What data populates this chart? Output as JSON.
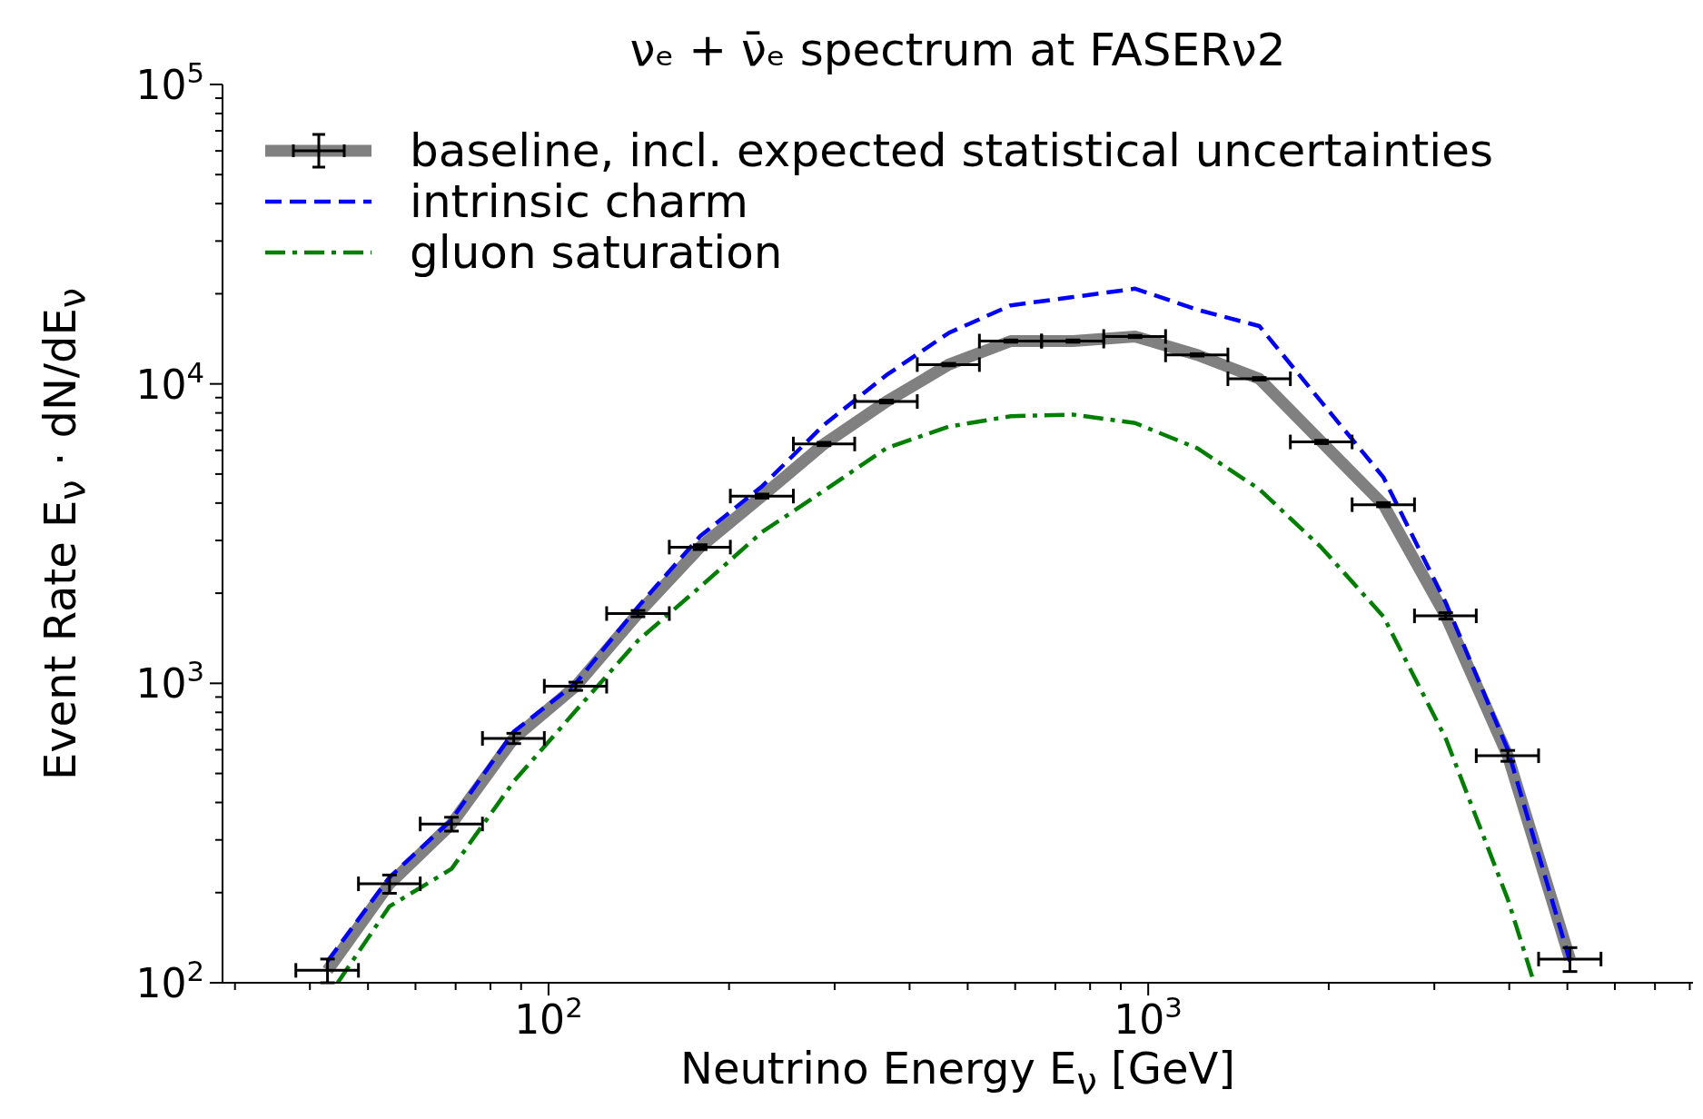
{
  "chart_data": {
    "type": "line",
    "title": "νₑ + ν̄ₑ spectrum at FASERν2",
    "xlabel": "Neutrino Energy  E$_{ν}$ [GeV]",
    "ylabel": "Event Rate   E$_{ν}$ · dN/dE$_{ν}$",
    "x": [
      42.8,
      54.3,
      68.9,
      87.5,
      111,
      141,
      179,
      227,
      288,
      366,
      465,
      590,
      749,
      951,
      1207,
      1532,
      1945,
      2468,
      3134,
      3978,
      5050
    ],
    "series": [
      {
        "name": "baseline, incl. expected statistical uncertainties",
        "color": "#808080",
        "line_style": "solid",
        "values": [
          110,
          214,
          339,
          655,
          978,
          1710,
          2850,
          4220,
          6300,
          8730,
          11600,
          13900,
          13900,
          14400,
          12500,
          10400,
          6400,
          3950,
          1680,
          573,
          120
        ],
        "errors": [
          10,
          15,
          18,
          26,
          31,
          41,
          53,
          65,
          79,
          93,
          108,
          118,
          118,
          120,
          112,
          102,
          80,
          63,
          41,
          24,
          11
        ],
        "xerrors": [
          [
            37.9,
            48.2
          ],
          [
            48.2,
            61.1
          ],
          [
            61.1,
            77.6
          ],
          [
            77.6,
            98.4
          ],
          [
            98.4,
            125
          ],
          [
            125,
            159
          ],
          [
            159,
            201
          ],
          [
            201,
            256
          ],
          [
            256,
            324
          ],
          [
            324,
            412
          ],
          [
            412,
            523
          ],
          [
            523,
            664
          ],
          [
            664,
            843
          ],
          [
            843,
            1069
          ],
          [
            1069,
            1358
          ],
          [
            1358,
            1726
          ],
          [
            1726,
            2188
          ],
          [
            2188,
            2780
          ],
          [
            2780,
            3524
          ],
          [
            3524,
            4477
          ],
          [
            4477,
            5689
          ]
        ]
      },
      {
        "name": "intrinsic charm",
        "color": "#0000ff",
        "line_style": "dashed",
        "values": [
          118,
          225,
          350,
          690,
          1000,
          1800,
          3100,
          4550,
          7300,
          10700,
          14800,
          18300,
          19500,
          20800,
          17700,
          15600,
          8700,
          4870,
          1860,
          600,
          118
        ]
      },
      {
        "name": "gluon saturation",
        "color": "#008000",
        "line_style": "dashdot",
        "x": [
          44.5,
          54.3,
          68.9,
          87.5,
          111,
          141,
          179,
          227,
          288,
          366,
          465,
          590,
          749,
          951,
          1207,
          1532,
          1945,
          2468,
          3134,
          3978,
          4400
        ],
        "values": [
          100,
          180,
          240,
          470,
          810,
          1390,
          2100,
          3200,
          4400,
          6100,
          7200,
          7800,
          7900,
          7400,
          6100,
          4450,
          2840,
          1670,
          655,
          190,
          100
        ]
      }
    ],
    "log": "xy",
    "xlim": [
      28.6,
      8100
    ],
    "ylim": [
      100,
      100000
    ],
    "xticks": [
      {
        "value": 30,
        "label": null
      },
      {
        "value": 40,
        "label": null
      },
      {
        "value": 50,
        "label": null
      },
      {
        "value": 60,
        "label": null
      },
      {
        "value": 70,
        "label": null
      },
      {
        "value": 80,
        "label": null
      },
      {
        "value": 90,
        "label": null
      },
      {
        "value": 100,
        "label": "10$^{2}$"
      },
      {
        "value": 200,
        "label": null
      },
      {
        "value": 300,
        "label": null
      },
      {
        "value": 400,
        "label": null
      },
      {
        "value": 500,
        "label": null
      },
      {
        "value": 600,
        "label": null
      },
      {
        "value": 700,
        "label": null
      },
      {
        "value": 800,
        "label": null
      },
      {
        "value": 900,
        "label": null
      },
      {
        "value": 1000,
        "label": "10$^{3}$"
      },
      {
        "value": 2000,
        "label": null
      },
      {
        "value": 3000,
        "label": null
      },
      {
        "value": 4000,
        "label": null
      },
      {
        "value": 5000,
        "label": null
      },
      {
        "value": 6000,
        "label": null
      },
      {
        "value": 7000,
        "label": null
      },
      {
        "value": 8000,
        "label": null
      }
    ],
    "yticks": [
      {
        "value": 100,
        "label": "10$^{2}$"
      },
      {
        "value": 200,
        "label": null
      },
      {
        "value": 300,
        "label": null
      },
      {
        "value": 400,
        "label": null
      },
      {
        "value": 500,
        "label": null
      },
      {
        "value": 600,
        "label": null
      },
      {
        "value": 700,
        "label": null
      },
      {
        "value": 800,
        "label": null
      },
      {
        "value": 900,
        "label": null
      },
      {
        "value": 1000,
        "label": "10$^{3}$"
      },
      {
        "value": 2000,
        "label": null
      },
      {
        "value": 3000,
        "label": null
      },
      {
        "value": 4000,
        "label": null
      },
      {
        "value": 5000,
        "label": null
      },
      {
        "value": 6000,
        "label": null
      },
      {
        "value": 7000,
        "label": null
      },
      {
        "value": 8000,
        "label": null
      },
      {
        "value": 9000,
        "label": null
      },
      {
        "value": 10000,
        "label": "10$^{4}$"
      },
      {
        "value": 20000,
        "label": null
      },
      {
        "value": 30000,
        "label": null
      },
      {
        "value": 40000,
        "label": null
      },
      {
        "value": 50000,
        "label": null
      },
      {
        "value": 60000,
        "label": null
      },
      {
        "value": 70000,
        "label": null
      },
      {
        "value": 80000,
        "label": null
      },
      {
        "value": 90000,
        "label": null
      },
      {
        "value": 100000,
        "label": "10$^{5}$"
      }
    ],
    "grid": false,
    "legend": "top left",
    "marker": "none"
  }
}
